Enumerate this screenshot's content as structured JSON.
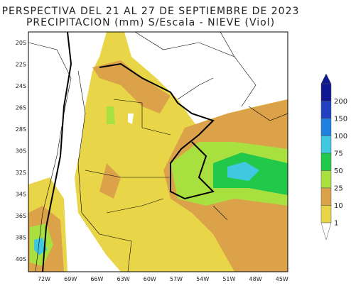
{
  "title": {
    "line1": "PERSPECTIVA DEL 21 AL 27 DE SEPTIEMBRE DE 2023",
    "line2": "PRECIPITACION (mm) S/Escala - NIEVE (Viol)"
  },
  "lat_labels": [
    "20S",
    "22S",
    "24S",
    "26S",
    "28S",
    "30S",
    "32S",
    "34S",
    "36S",
    "38S",
    "40S"
  ],
  "lon_labels": [
    "72W",
    "69W",
    "66W",
    "63W",
    "60W",
    "57W",
    "54W",
    "51W",
    "48W",
    "45W"
  ],
  "colorbar": {
    "labels": [
      200,
      150,
      100,
      75,
      50,
      25,
      10,
      1
    ]
  }
}
